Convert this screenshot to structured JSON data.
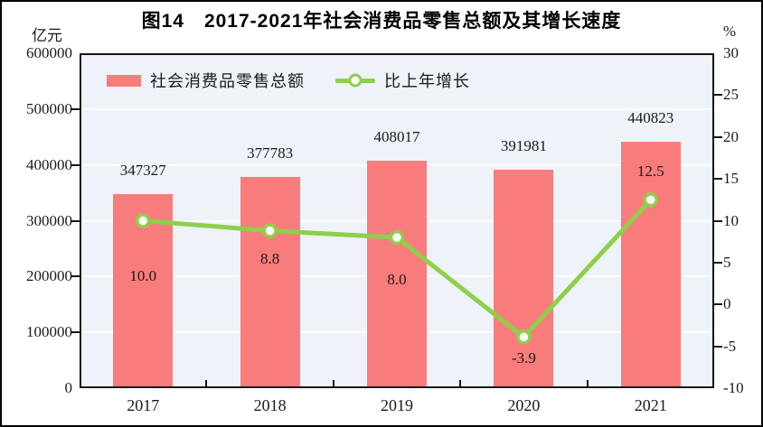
{
  "title": "图14　2017-2021年社会消费品零售总额及其增长速度",
  "left_axis": {
    "unit": "亿元",
    "ticks": [
      600000,
      500000,
      400000,
      300000,
      200000,
      100000,
      0
    ]
  },
  "right_axis": {
    "unit": "%",
    "ticks": [
      30,
      25,
      20,
      15,
      10,
      5,
      0,
      -5,
      -10
    ]
  },
  "legend": {
    "items": [
      {
        "label": "社会消费品零售总额",
        "marker": "bar-swatch"
      },
      {
        "label": "比上年增长",
        "marker": "line-marker"
      }
    ]
  },
  "colors": {
    "bar": "#f97c7c",
    "line": "#8ecf4b",
    "marker_fill": "#ffffff",
    "plot_background": "#edf3f8",
    "gridline": "#ffffff",
    "frame": "#141414",
    "text": "#1a1a1a"
  },
  "chart_data": {
    "type": "bar+line combo",
    "categories": [
      "2017",
      "2018",
      "2019",
      "2020",
      "2021"
    ],
    "series": [
      {
        "name": "社会消费品零售总额",
        "type": "bar",
        "axis": "left",
        "unit": "亿元",
        "values": [
          347327,
          377783,
          408017,
          391981,
          440823
        ],
        "value_labels": [
          "347327",
          "377783",
          "408017",
          "391981",
          "440823"
        ]
      },
      {
        "name": "比上年增长",
        "type": "line",
        "axis": "right",
        "unit": "%",
        "values": [
          10.0,
          8.8,
          8.0,
          -3.9,
          12.5
        ],
        "value_labels": [
          "10.0",
          "8.8",
          "8.0",
          "-3.9",
          "12.5"
        ],
        "label_dy": [
          61,
          31,
          47,
          24,
          -31
        ]
      }
    ],
    "left_ylim": [
      0,
      600000
    ],
    "right_ylim": [
      -10,
      30
    ],
    "grid": "horizontal white gridlines at left-axis intervals of 100000",
    "legend_position": "top-left inside plot area"
  }
}
